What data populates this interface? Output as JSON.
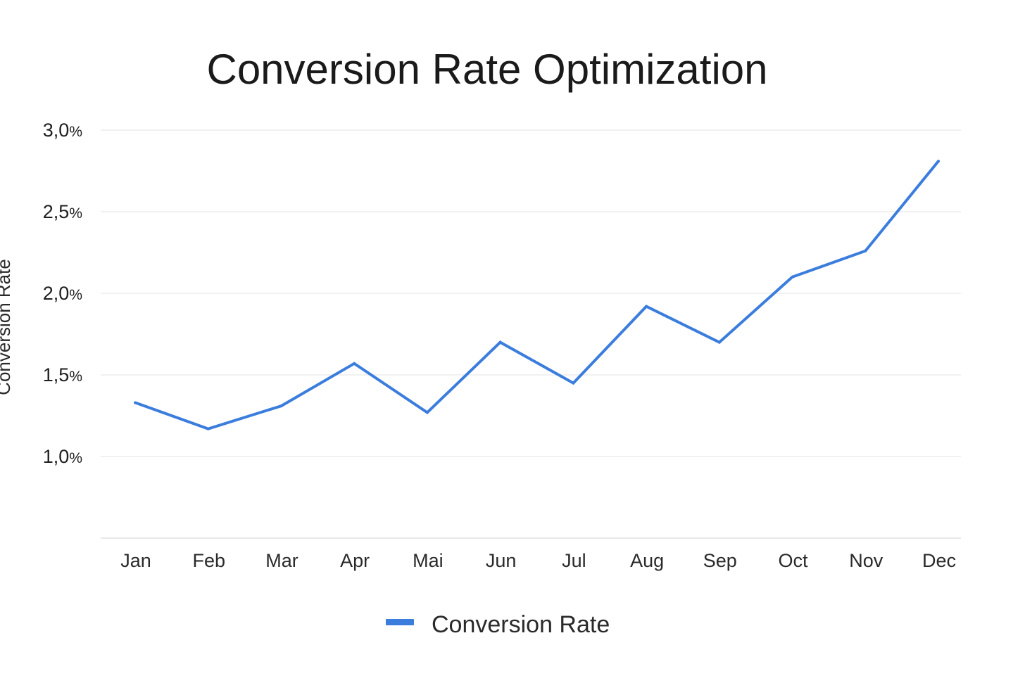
{
  "chart_data": {
    "type": "line",
    "title": "Conversion Rate Optimization",
    "xlabel": "",
    "ylabel": "Conversion Rate",
    "categories": [
      "Jan",
      "Feb",
      "Mar",
      "Apr",
      "Mai",
      "Jun",
      "Jul",
      "Aug",
      "Sep",
      "Oct",
      "Nov",
      "Dec"
    ],
    "series": [
      {
        "name": "Conversion Rate",
        "color": "#3b7ddd",
        "values": [
          1.33,
          1.17,
          1.31,
          1.57,
          1.27,
          1.7,
          1.45,
          1.92,
          1.7,
          2.1,
          2.26,
          2.81
        ]
      }
    ],
    "y_ticks": [
      {
        "num": "1,0",
        "unit": "%",
        "value": 1.0
      },
      {
        "num": "1,5",
        "unit": "%",
        "value": 1.5
      },
      {
        "num": "2,0",
        "unit": "%",
        "value": 2.0
      },
      {
        "num": "2,5",
        "unit": "%",
        "value": 2.5
      },
      {
        "num": "3,0",
        "unit": "%",
        "value": 3.0
      }
    ],
    "ylim": [
      0.5,
      3.0
    ],
    "grid": true,
    "legend_position": "bottom-center"
  }
}
